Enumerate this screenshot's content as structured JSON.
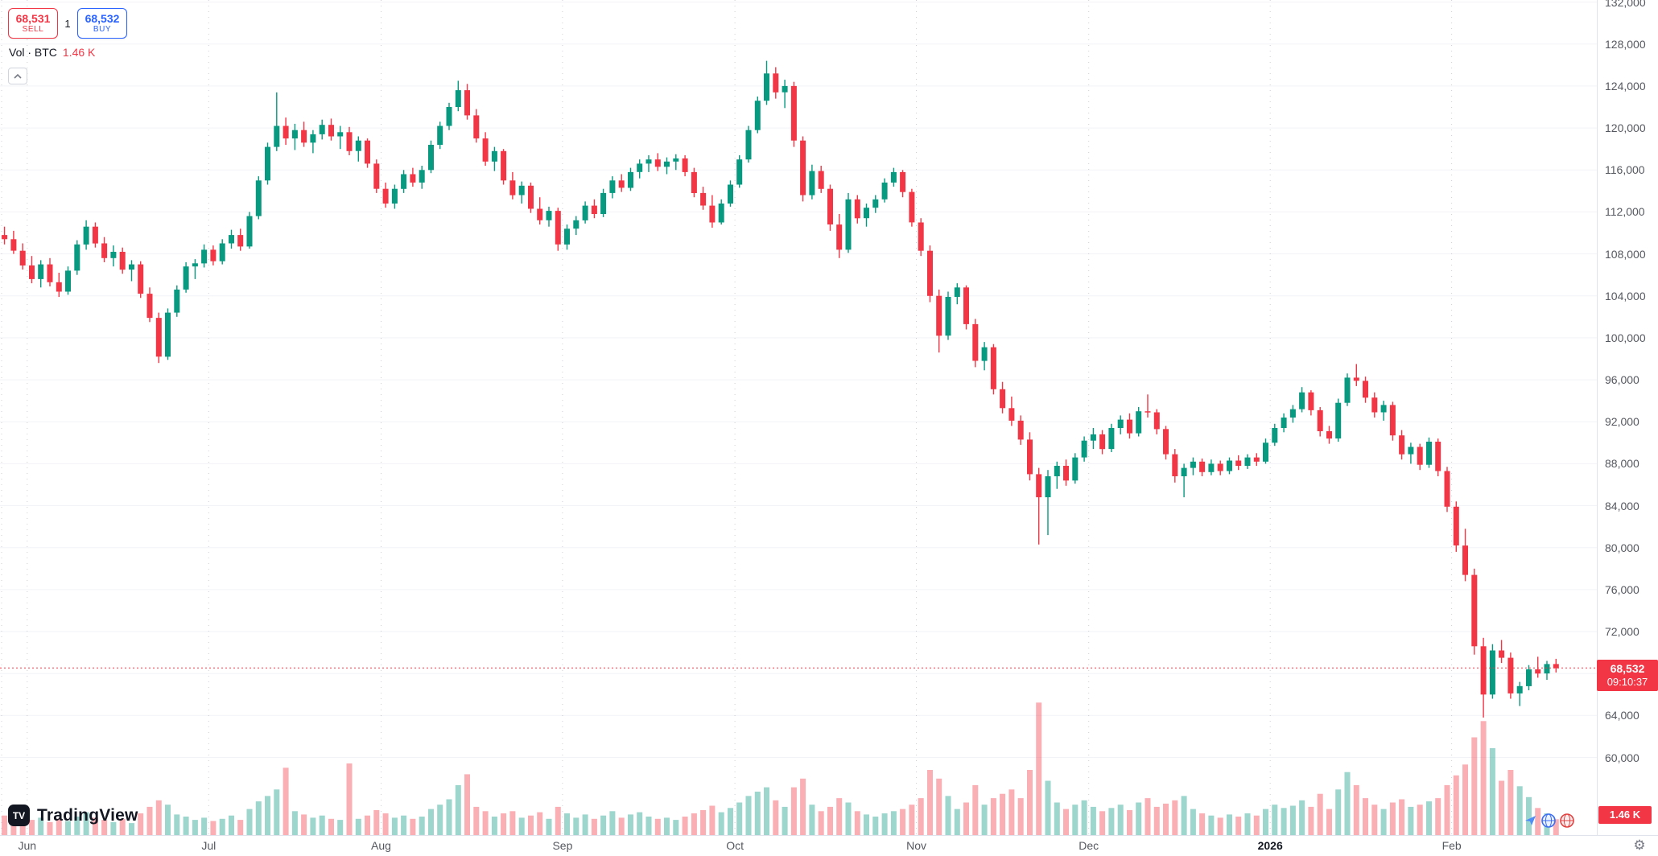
{
  "order_panel": {
    "sell_price": "68,531",
    "sell_label": "SELL",
    "spread": "1",
    "buy_price": "68,532",
    "buy_label": "BUY"
  },
  "legend": {
    "label": "Vol · BTC",
    "value": "1.46 K"
  },
  "logo": {
    "text": "TradingView"
  },
  "price_tag": {
    "price": "68,532",
    "countdown": "09:10:37"
  },
  "volume_tag": {
    "value": "1.46 K"
  },
  "colors": {
    "sell": "#f23645",
    "buy": "#2962ff"
  },
  "chart_data": {
    "type": "candlestick",
    "subtype": "price_with_volume",
    "units": "prices in thousands of USD, volumes in K BTC",
    "current_price": 68.532,
    "price_axis": {
      "min": 52.6,
      "max": 132.2
    },
    "grid": true,
    "colors": {
      "up": "#089981",
      "down": "#f23645"
    },
    "y_ticks": [
      {
        "value": 132,
        "label": "132,000"
      },
      {
        "value": 128,
        "label": "128,000"
      },
      {
        "value": 124,
        "label": "124,000"
      },
      {
        "value": 120,
        "label": "120,000"
      },
      {
        "value": 116,
        "label": "116,000"
      },
      {
        "value": 112,
        "label": "112,000"
      },
      {
        "value": 108,
        "label": "108,000"
      },
      {
        "value": 104,
        "label": "104,000"
      },
      {
        "value": 100,
        "label": "100,000"
      },
      {
        "value": 96,
        "label": "96,000"
      },
      {
        "value": 92,
        "label": "92,000"
      },
      {
        "value": 88,
        "label": "88,000"
      },
      {
        "value": 84,
        "label": "84,000"
      },
      {
        "value": 80,
        "label": "80,000"
      },
      {
        "value": 76,
        "label": "76,000"
      },
      {
        "value": 72,
        "label": "72,000"
      },
      {
        "value": 68,
        "label": "68,000"
      },
      {
        "value": 64,
        "label": "64,000"
      },
      {
        "value": 60,
        "label": "60,000"
      }
    ],
    "x_ticks": [
      {
        "label": "",
        "index": 0.18
      },
      {
        "label": "Jun",
        "index": 3
      },
      {
        "label": "Jul",
        "index": 23
      },
      {
        "label": "Aug",
        "index": 42
      },
      {
        "label": "Sep",
        "index": 62
      },
      {
        "label": "Oct",
        "index": 81
      },
      {
        "label": "Nov",
        "index": 101
      },
      {
        "label": "Dec",
        "index": 120
      },
      {
        "label": "2026",
        "index": 140,
        "major": true
      },
      {
        "label": "Feb",
        "index": 160
      }
    ],
    "candles": [
      [
        109.8,
        110.6,
        108.9,
        109.4
      ],
      [
        109.4,
        110.2,
        108.0,
        108.3
      ],
      [
        108.3,
        109.0,
        106.5,
        106.9
      ],
      [
        106.9,
        107.8,
        105.2,
        105.6
      ],
      [
        105.6,
        107.4,
        104.8,
        107.0
      ],
      [
        107.0,
        107.6,
        104.9,
        105.3
      ],
      [
        105.3,
        106.2,
        103.9,
        104.4
      ],
      [
        104.4,
        106.8,
        104.1,
        106.4
      ],
      [
        106.4,
        109.3,
        106.0,
        108.9
      ],
      [
        108.9,
        111.2,
        108.4,
        110.6
      ],
      [
        110.6,
        111.0,
        108.6,
        109.0
      ],
      [
        109.0,
        109.6,
        107.2,
        107.6
      ],
      [
        107.6,
        108.8,
        106.8,
        108.2
      ],
      [
        108.2,
        108.6,
        106.1,
        106.5
      ],
      [
        106.5,
        107.4,
        105.4,
        107.0
      ],
      [
        107.0,
        107.3,
        103.8,
        104.2
      ],
      [
        104.2,
        104.8,
        101.5,
        101.9
      ],
      [
        101.9,
        102.4,
        97.6,
        98.2
      ],
      [
        98.2,
        102.8,
        97.9,
        102.4
      ],
      [
        102.4,
        105.0,
        102.0,
        104.6
      ],
      [
        104.6,
        107.2,
        104.3,
        106.8
      ],
      [
        106.8,
        107.5,
        105.6,
        107.1
      ],
      [
        107.1,
        108.9,
        106.7,
        108.4
      ],
      [
        108.4,
        108.8,
        106.9,
        107.3
      ],
      [
        107.3,
        109.4,
        107.0,
        109.0
      ],
      [
        109.0,
        110.3,
        108.5,
        109.8
      ],
      [
        109.8,
        110.4,
        108.3,
        108.7
      ],
      [
        108.7,
        112.0,
        108.5,
        111.6
      ],
      [
        111.6,
        115.4,
        111.3,
        115.0
      ],
      [
        115.0,
        118.6,
        114.6,
        118.2
      ],
      [
        118.2,
        123.4,
        117.8,
        120.2
      ],
      [
        120.2,
        121.0,
        118.4,
        119.0
      ],
      [
        119.0,
        120.4,
        117.9,
        119.8
      ],
      [
        119.8,
        120.6,
        118.2,
        118.6
      ],
      [
        118.6,
        119.8,
        117.6,
        119.4
      ],
      [
        119.4,
        120.8,
        118.9,
        120.3
      ],
      [
        120.3,
        120.9,
        118.8,
        119.2
      ],
      [
        119.2,
        120.2,
        118.0,
        119.6
      ],
      [
        119.6,
        120.1,
        117.4,
        117.8
      ],
      [
        117.8,
        119.2,
        116.8,
        118.8
      ],
      [
        118.8,
        119.0,
        116.2,
        116.6
      ],
      [
        116.6,
        117.0,
        113.8,
        114.2
      ],
      [
        114.2,
        114.8,
        112.4,
        112.8
      ],
      [
        112.8,
        114.6,
        112.3,
        114.2
      ],
      [
        114.2,
        116.0,
        113.8,
        115.6
      ],
      [
        115.6,
        116.2,
        114.4,
        114.8
      ],
      [
        114.8,
        116.4,
        114.2,
        116.0
      ],
      [
        116.0,
        118.8,
        115.7,
        118.4
      ],
      [
        118.4,
        120.6,
        118.0,
        120.2
      ],
      [
        120.2,
        122.4,
        119.8,
        122.0
      ],
      [
        122.0,
        124.5,
        121.6,
        123.6
      ],
      [
        123.6,
        124.2,
        120.8,
        121.2
      ],
      [
        121.2,
        121.8,
        118.6,
        119.0
      ],
      [
        119.0,
        119.6,
        116.4,
        116.8
      ],
      [
        116.8,
        118.2,
        115.9,
        117.8
      ],
      [
        117.8,
        118.0,
        114.6,
        115.0
      ],
      [
        115.0,
        115.8,
        113.2,
        113.6
      ],
      [
        113.6,
        114.9,
        112.8,
        114.5
      ],
      [
        114.5,
        114.8,
        111.9,
        112.3
      ],
      [
        112.3,
        113.4,
        110.8,
        111.2
      ],
      [
        111.2,
        112.5,
        110.6,
        112.1
      ],
      [
        112.1,
        112.4,
        108.3,
        108.9
      ],
      [
        108.9,
        110.8,
        108.4,
        110.4
      ],
      [
        110.4,
        111.6,
        109.8,
        111.2
      ],
      [
        111.2,
        113.0,
        110.9,
        112.6
      ],
      [
        112.6,
        113.2,
        111.4,
        111.8
      ],
      [
        111.8,
        114.2,
        111.5,
        113.8
      ],
      [
        113.8,
        115.4,
        113.3,
        115.0
      ],
      [
        115.0,
        115.6,
        113.9,
        114.3
      ],
      [
        114.3,
        116.2,
        114.0,
        115.8
      ],
      [
        115.8,
        117.0,
        115.2,
        116.6
      ],
      [
        116.6,
        117.4,
        115.8,
        117.0
      ],
      [
        117.0,
        117.6,
        115.9,
        116.3
      ],
      [
        116.3,
        117.2,
        115.6,
        116.8
      ],
      [
        116.8,
        117.5,
        116.0,
        117.1
      ],
      [
        117.1,
        117.4,
        115.4,
        115.8
      ],
      [
        115.8,
        116.2,
        113.4,
        113.8
      ],
      [
        113.8,
        114.4,
        112.2,
        112.6
      ],
      [
        112.6,
        113.6,
        110.5,
        111.0
      ],
      [
        111.0,
        113.2,
        110.8,
        112.8
      ],
      [
        112.8,
        115.0,
        112.5,
        114.6
      ],
      [
        114.6,
        117.4,
        114.3,
        117.0
      ],
      [
        117.0,
        120.2,
        116.7,
        119.8
      ],
      [
        119.8,
        123.0,
        119.5,
        122.6
      ],
      [
        122.6,
        126.4,
        122.2,
        125.2
      ],
      [
        125.2,
        125.8,
        122.8,
        123.4
      ],
      [
        123.4,
        124.6,
        121.9,
        124.0
      ],
      [
        124.0,
        124.4,
        118.2,
        118.8
      ],
      [
        118.8,
        119.2,
        113.0,
        113.6
      ],
      [
        113.6,
        116.5,
        113.2,
        115.9
      ],
      [
        115.9,
        116.4,
        113.8,
        114.2
      ],
      [
        114.2,
        114.6,
        110.2,
        110.8
      ],
      [
        110.8,
        111.8,
        107.6,
        108.4
      ],
      [
        108.4,
        113.8,
        108.1,
        113.2
      ],
      [
        113.2,
        113.6,
        110.9,
        111.4
      ],
      [
        111.4,
        112.8,
        110.6,
        112.4
      ],
      [
        112.4,
        113.6,
        111.9,
        113.2
      ],
      [
        113.2,
        115.2,
        112.9,
        114.8
      ],
      [
        114.8,
        116.2,
        114.4,
        115.8
      ],
      [
        115.8,
        116.0,
        113.4,
        113.9
      ],
      [
        113.9,
        114.2,
        110.6,
        111.0
      ],
      [
        111.0,
        111.4,
        107.8,
        108.3
      ],
      [
        108.3,
        108.8,
        103.4,
        104.0
      ],
      [
        104.0,
        104.6,
        98.6,
        100.2
      ],
      [
        100.2,
        104.4,
        99.8,
        103.9
      ],
      [
        103.9,
        105.2,
        103.2,
        104.8
      ],
      [
        104.8,
        105.0,
        100.8,
        101.3
      ],
      [
        101.3,
        101.8,
        97.2,
        97.8
      ],
      [
        97.8,
        99.6,
        96.9,
        99.1
      ],
      [
        99.1,
        99.4,
        94.6,
        95.1
      ],
      [
        95.1,
        95.8,
        92.8,
        93.3
      ],
      [
        93.3,
        94.4,
        91.6,
        92.1
      ],
      [
        92.1,
        92.6,
        89.8,
        90.3
      ],
      [
        90.3,
        91.0,
        86.4,
        87.0
      ],
      [
        87.0,
        87.6,
        80.3,
        84.8
      ],
      [
        84.8,
        87.4,
        81.2,
        86.8
      ],
      [
        86.8,
        88.2,
        85.6,
        87.8
      ],
      [
        87.8,
        88.4,
        85.9,
        86.4
      ],
      [
        86.4,
        89.0,
        86.1,
        88.6
      ],
      [
        88.6,
        90.6,
        88.2,
        90.2
      ],
      [
        90.2,
        91.4,
        89.4,
        90.8
      ],
      [
        90.8,
        91.2,
        88.9,
        89.4
      ],
      [
        89.4,
        91.8,
        89.1,
        91.4
      ],
      [
        91.4,
        92.6,
        90.8,
        92.2
      ],
      [
        92.2,
        92.8,
        90.4,
        90.9
      ],
      [
        90.9,
        93.4,
        90.6,
        93.0
      ],
      [
        93.0,
        94.6,
        92.4,
        92.9
      ],
      [
        92.9,
        93.2,
        90.8,
        91.3
      ],
      [
        91.3,
        91.6,
        88.4,
        88.9
      ],
      [
        88.9,
        89.4,
        86.2,
        86.8
      ],
      [
        86.8,
        88.0,
        84.8,
        87.6
      ],
      [
        87.6,
        88.6,
        86.9,
        88.2
      ],
      [
        88.2,
        88.5,
        86.8,
        87.2
      ],
      [
        87.2,
        88.4,
        86.9,
        88.0
      ],
      [
        88.0,
        88.3,
        86.9,
        87.3
      ],
      [
        87.3,
        88.6,
        87.0,
        88.3
      ],
      [
        88.3,
        88.8,
        87.4,
        87.8
      ],
      [
        87.8,
        88.9,
        87.5,
        88.6
      ],
      [
        88.6,
        89.0,
        87.8,
        88.2
      ],
      [
        88.2,
        90.4,
        88.0,
        90.0
      ],
      [
        90.0,
        91.8,
        89.7,
        91.4
      ],
      [
        91.4,
        92.8,
        91.0,
        92.4
      ],
      [
        92.4,
        93.6,
        91.9,
        93.2
      ],
      [
        93.2,
        95.3,
        92.9,
        94.8
      ],
      [
        94.8,
        95.0,
        92.6,
        93.1
      ],
      [
        93.1,
        93.4,
        90.6,
        91.1
      ],
      [
        91.1,
        91.6,
        89.9,
        90.4
      ],
      [
        90.4,
        94.2,
        90.1,
        93.8
      ],
      [
        93.8,
        96.6,
        93.5,
        96.2
      ],
      [
        96.2,
        97.5,
        95.4,
        95.9
      ],
      [
        95.9,
        96.3,
        93.8,
        94.3
      ],
      [
        94.3,
        94.8,
        92.4,
        92.9
      ],
      [
        92.9,
        94.0,
        92.1,
        93.6
      ],
      [
        93.6,
        93.9,
        90.2,
        90.7
      ],
      [
        90.7,
        91.2,
        88.4,
        88.9
      ],
      [
        88.9,
        90.0,
        88.0,
        89.6
      ],
      [
        89.6,
        89.9,
        87.4,
        87.9
      ],
      [
        87.9,
        90.5,
        87.6,
        90.1
      ],
      [
        90.1,
        90.4,
        86.8,
        87.3
      ],
      [
        87.3,
        87.7,
        83.4,
        83.9
      ],
      [
        83.9,
        84.4,
        79.6,
        80.2
      ],
      [
        80.2,
        81.8,
        76.8,
        77.4
      ],
      [
        77.4,
        78.0,
        69.8,
        70.6
      ],
      [
        70.6,
        71.4,
        63.8,
        66.0
      ],
      [
        66.0,
        70.8,
        65.6,
        70.2
      ],
      [
        70.2,
        71.2,
        69.0,
        69.5
      ],
      [
        69.5,
        70.0,
        65.6,
        66.1
      ],
      [
        66.1,
        67.2,
        64.9,
        66.8
      ],
      [
        66.8,
        68.8,
        66.4,
        68.4
      ],
      [
        68.4,
        69.6,
        67.6,
        68.0
      ],
      [
        68.0,
        69.2,
        67.4,
        68.9
      ],
      [
        68.9,
        69.4,
        68.1,
        68.5
      ]
    ],
    "volumes": [
      1.8,
      1.5,
      1.9,
      1.4,
      1.6,
      1.2,
      1.5,
      1.3,
      1.7,
      2.1,
      1.6,
      1.4,
      1.2,
      1.5,
      1.1,
      2.0,
      2.6,
      3.2,
      2.8,
      1.9,
      1.7,
      1.4,
      1.6,
      1.3,
      1.5,
      1.8,
      1.4,
      2.4,
      3.1,
      3.6,
      4.2,
      6.2,
      2.2,
      1.9,
      1.6,
      1.8,
      1.5,
      1.4,
      6.6,
      1.5,
      1.8,
      2.3,
      2.0,
      1.6,
      1.8,
      1.5,
      1.7,
      2.4,
      2.8,
      3.3,
      4.6,
      5.6,
      2.6,
      2.2,
      1.7,
      2.0,
      2.2,
      1.6,
      1.8,
      2.1,
      1.5,
      2.6,
      2.0,
      1.6,
      1.9,
      1.5,
      1.8,
      2.2,
      1.6,
      1.9,
      2.1,
      1.7,
      1.5,
      1.6,
      1.4,
      1.7,
      2.0,
      2.3,
      2.7,
      2.1,
      2.5,
      3.0,
      3.6,
      4.0,
      4.4,
      3.2,
      2.6,
      4.4,
      5.2,
      2.8,
      2.2,
      2.6,
      3.4,
      3.0,
      2.2,
      1.9,
      1.7,
      2.0,
      2.2,
      2.4,
      2.8,
      3.4,
      6.0,
      5.2,
      3.6,
      2.4,
      3.0,
      4.6,
      2.8,
      3.4,
      3.8,
      4.2,
      3.4,
      6.0,
      12.2,
      5.0,
      3.0,
      2.4,
      2.8,
      3.2,
      2.6,
      2.2,
      2.5,
      2.8,
      2.3,
      3.0,
      3.4,
      2.6,
      2.9,
      3.2,
      3.6,
      2.4,
      2.0,
      1.8,
      1.6,
      1.9,
      1.7,
      2.0,
      1.8,
      2.4,
      2.8,
      2.5,
      2.7,
      3.2,
      2.6,
      3.8,
      2.4,
      4.2,
      5.8,
      4.6,
      3.4,
      2.8,
      2.4,
      3.0,
      3.3,
      2.6,
      2.8,
      3.1,
      3.4,
      4.6,
      5.5,
      6.5,
      9.0,
      10.5,
      8.0,
      5.0,
      6.0,
      4.5,
      3.5,
      2.5,
      2.0,
      1.46
    ]
  }
}
